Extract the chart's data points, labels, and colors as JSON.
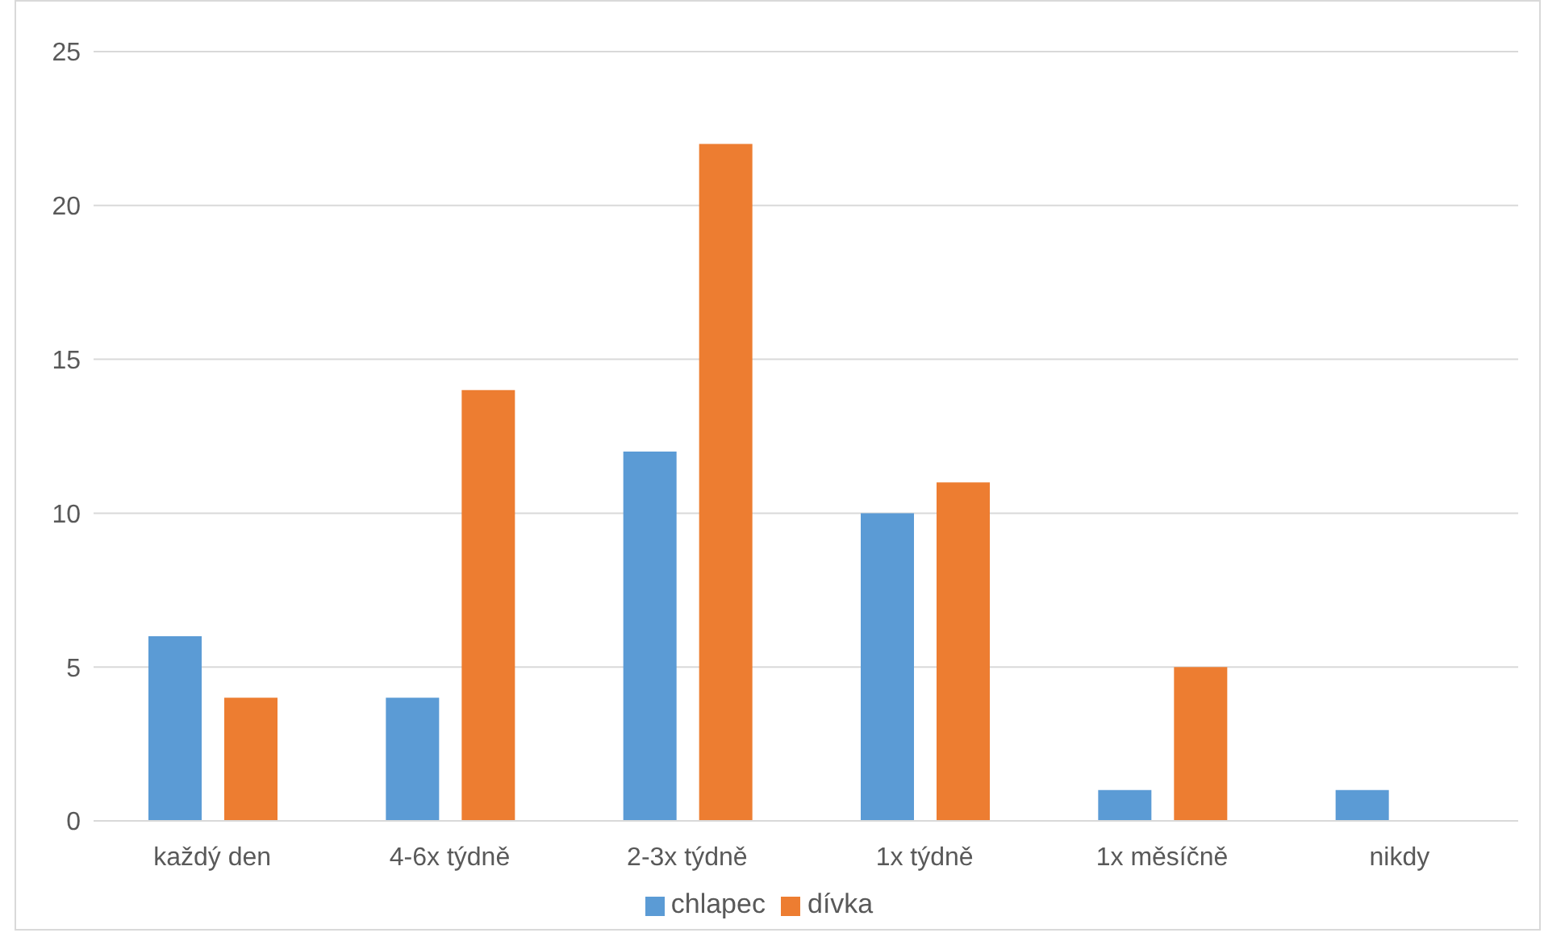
{
  "chart_data": {
    "type": "bar",
    "categories": [
      "každý den",
      "4-6x týdně",
      "2-3x týdně",
      "1x týdně",
      "1x měsíčně",
      "nikdy"
    ],
    "series": [
      {
        "name": "chlapec",
        "color": "#5b9bd5",
        "values": [
          6,
          4,
          12,
          10,
          1,
          1
        ]
      },
      {
        "name": "dívka",
        "color": "#ed7d31",
        "values": [
          4,
          14,
          22,
          11,
          5,
          0
        ]
      }
    ],
    "ylim": [
      0,
      25
    ],
    "yticks": [
      0,
      5,
      10,
      15,
      20,
      25
    ],
    "grid": "y",
    "legend": "bottom"
  }
}
